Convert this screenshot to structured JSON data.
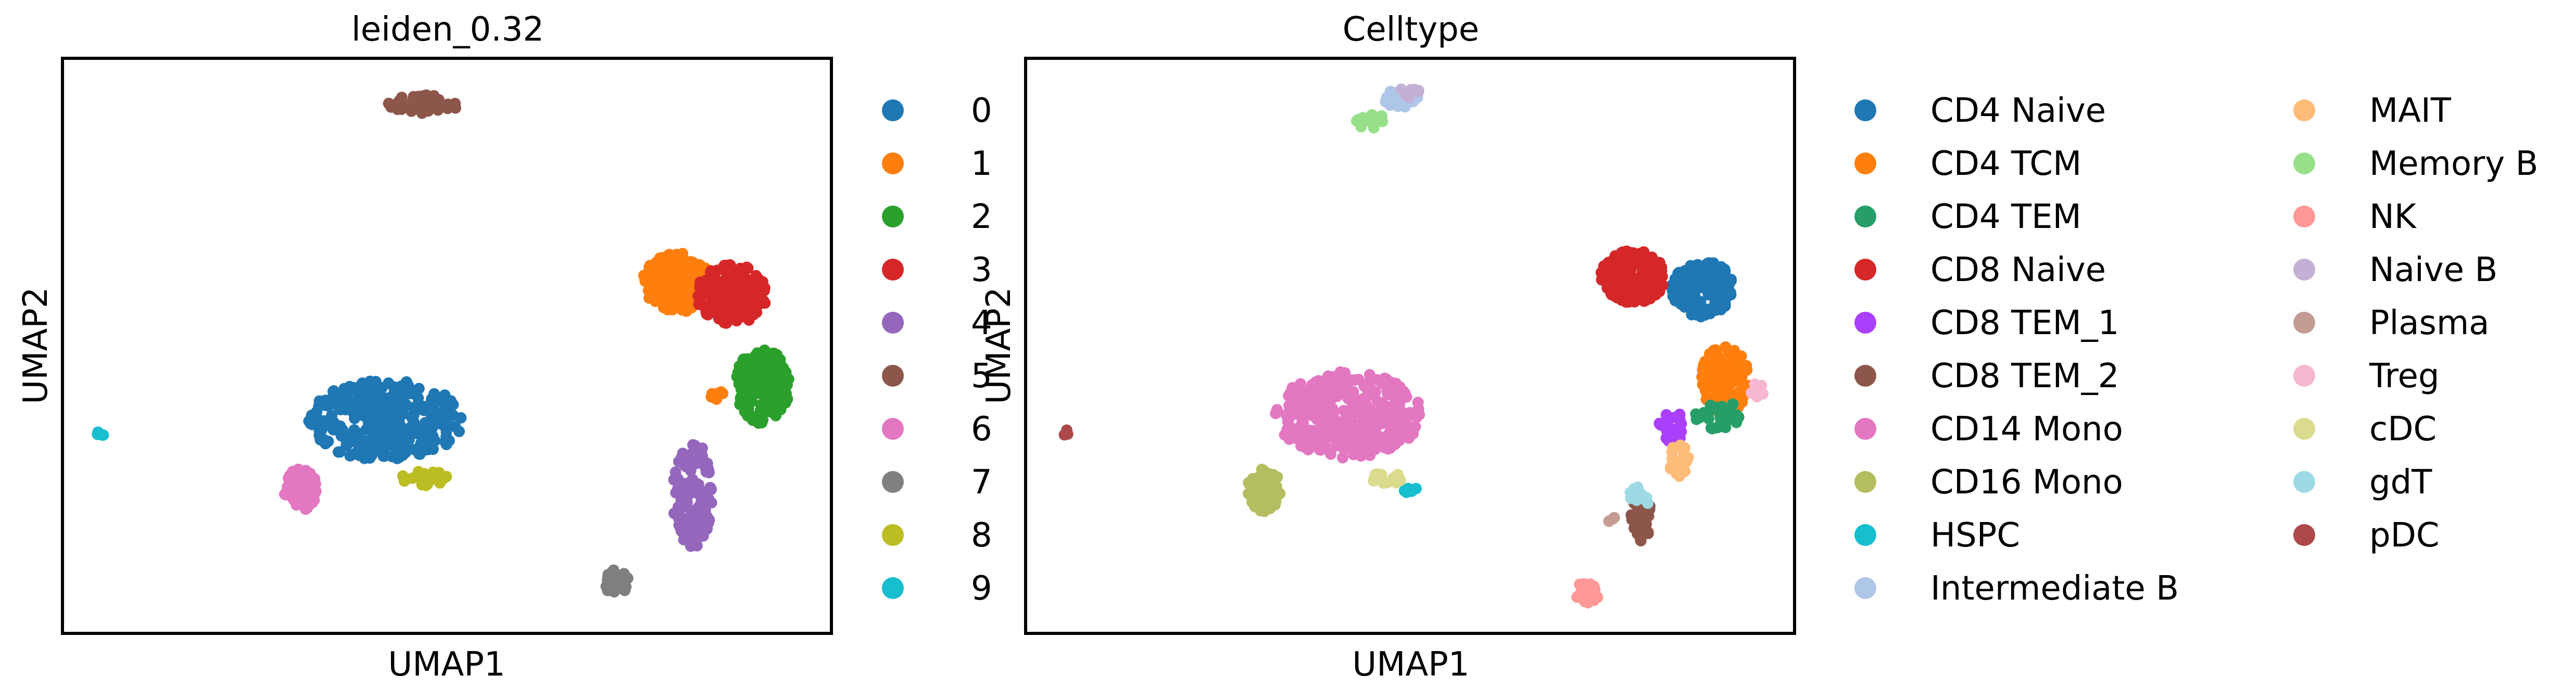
{
  "chart_data": [
    {
      "type": "scatter",
      "title": "leiden_0.32",
      "xlabel": "UMAP1",
      "ylabel": "UMAP2",
      "xlim": [
        0,
        100
      ],
      "ylim": [
        0,
        100
      ],
      "grid": false,
      "legend_position": "right",
      "series": [
        {
          "name": "0",
          "color": "#1f77b4",
          "clusters": [
            {
              "cx": 42,
              "cy": 37,
              "rx": 10,
              "ry": 7,
              "n": 320
            }
          ]
        },
        {
          "name": "1",
          "color": "#ff7f0e",
          "clusters": [
            {
              "cx": 80,
              "cy": 61,
              "rx": 4.6,
              "ry": 5.2,
              "n": 200
            },
            {
              "cx": 85,
              "cy": 42,
              "rx": 0.9,
              "ry": 1.4,
              "n": 7
            }
          ]
        },
        {
          "name": "2",
          "color": "#2ca02c",
          "clusters": [
            {
              "cx": 91,
              "cy": 43,
              "rx": 3.6,
              "ry": 6.5,
              "n": 200
            }
          ]
        },
        {
          "name": "3",
          "color": "#d62728",
          "clusters": [
            {
              "cx": 87,
              "cy": 59,
              "rx": 4.6,
              "ry": 5.2,
              "n": 180
            }
          ]
        },
        {
          "name": "4",
          "color": "#9467bd",
          "clusters": [
            {
              "cx": 82,
              "cy": 24,
              "rx": 2.6,
              "ry": 9.5,
              "n": 130
            }
          ]
        },
        {
          "name": "5",
          "color": "#8c564b",
          "clusters": [
            {
              "cx": 47,
              "cy": 92,
              "rx": 4.6,
              "ry": 1.6,
              "n": 40
            }
          ]
        },
        {
          "name": "6",
          "color": "#e377c2",
          "clusters": [
            {
              "cx": 31,
              "cy": 25,
              "rx": 2.2,
              "ry": 3.6,
              "n": 55
            }
          ]
        },
        {
          "name": "7",
          "color": "#7f7f7f",
          "clusters": [
            {
              "cx": 72,
              "cy": 9,
              "rx": 1.6,
              "ry": 2.2,
              "n": 35
            }
          ]
        },
        {
          "name": "8",
          "color": "#bcbd22",
          "clusters": [
            {
              "cx": 47,
              "cy": 27,
              "rx": 3.0,
              "ry": 1.3,
              "n": 22
            }
          ]
        },
        {
          "name": "9",
          "color": "#17becf",
          "clusters": [
            {
              "cx": 5,
              "cy": 35,
              "rx": 0.6,
              "ry": 0.6,
              "n": 5
            }
          ]
        }
      ]
    },
    {
      "type": "scatter",
      "title": "Celltype",
      "xlabel": "UMAP1",
      "ylabel": "UMAP2",
      "xlim": [
        0,
        100
      ],
      "ylim": [
        0,
        100
      ],
      "grid": false,
      "legend_position": "right",
      "series": [
        {
          "name": "CD4 Naive",
          "color": "#1f77b4",
          "clusters": [
            {
              "cx": 88,
              "cy": 60,
              "rx": 4.0,
              "ry": 5.0,
              "n": 170
            }
          ]
        },
        {
          "name": "CD4 TCM",
          "color": "#ff7f0e",
          "clusters": [
            {
              "cx": 91,
              "cy": 44,
              "rx": 3.2,
              "ry": 6.0,
              "n": 150
            }
          ]
        },
        {
          "name": "CD4 TEM",
          "color": "#279e68",
          "clusters": [
            {
              "cx": 90,
              "cy": 38,
              "rx": 3.0,
              "ry": 2.5,
              "n": 35
            }
          ]
        },
        {
          "name": "CD8 Naive",
          "color": "#d62728",
          "clusters": [
            {
              "cx": 79,
              "cy": 62,
              "rx": 4.2,
              "ry": 4.6,
              "n": 190
            }
          ]
        },
        {
          "name": "CD8 TEM_1",
          "color": "#aa40fc",
          "clusters": [
            {
              "cx": 84,
              "cy": 36,
              "rx": 1.6,
              "ry": 3.0,
              "n": 25
            }
          ]
        },
        {
          "name": "CD8 TEM_2",
          "color": "#8c564b",
          "clusters": [
            {
              "cx": 80,
              "cy": 20,
              "rx": 1.4,
              "ry": 4.0,
              "n": 40
            }
          ]
        },
        {
          "name": "CD14 Mono",
          "color": "#e377c2",
          "clusters": [
            {
              "cx": 42,
              "cy": 38,
              "rx": 9.5,
              "ry": 7.5,
              "n": 360
            }
          ]
        },
        {
          "name": "CD16 Mono",
          "color": "#b5bd61",
          "clusters": [
            {
              "cx": 31,
              "cy": 25,
              "rx": 2.2,
              "ry": 3.8,
              "n": 60
            }
          ]
        },
        {
          "name": "HSPC",
          "color": "#17becf",
          "clusters": [
            {
              "cx": 50,
              "cy": 25,
              "rx": 1.0,
              "ry": 0.6,
              "n": 6
            }
          ]
        },
        {
          "name": "Intermediate B",
          "color": "#aec7e8",
          "clusters": [
            {
              "cx": 49,
              "cy": 93,
              "rx": 2.6,
              "ry": 1.6,
              "n": 25
            }
          ]
        },
        {
          "name": "MAIT",
          "color": "#ffbb78",
          "clusters": [
            {
              "cx": 85,
              "cy": 30,
              "rx": 1.4,
              "ry": 3.0,
              "n": 18
            }
          ]
        },
        {
          "name": "Memory B",
          "color": "#98df8a",
          "clusters": [
            {
              "cx": 45,
              "cy": 89,
              "rx": 2.0,
              "ry": 1.3,
              "n": 15
            }
          ]
        },
        {
          "name": "NK",
          "color": "#ff9896",
          "clusters": [
            {
              "cx": 73,
              "cy": 7,
              "rx": 1.6,
              "ry": 2.0,
              "n": 30
            }
          ]
        },
        {
          "name": "Naive B",
          "color": "#c5b0d5",
          "clusters": [
            {
              "cx": 50,
              "cy": 94,
              "rx": 1.6,
              "ry": 1.0,
              "n": 12
            }
          ]
        },
        {
          "name": "Plasma",
          "color": "#c49c94",
          "clusters": [
            {
              "cx": 76,
              "cy": 20,
              "rx": 0.6,
              "ry": 0.6,
              "n": 3
            }
          ]
        },
        {
          "name": "Treg",
          "color": "#f7b6d2",
          "clusters": [
            {
              "cx": 95,
              "cy": 42,
              "rx": 1.0,
              "ry": 1.6,
              "n": 8
            }
          ]
        },
        {
          "name": "cDC",
          "color": "#dbdb8d",
          "clusters": [
            {
              "cx": 47,
              "cy": 27,
              "rx": 2.0,
              "ry": 1.2,
              "n": 15
            }
          ]
        },
        {
          "name": "gdT",
          "color": "#9edae5",
          "clusters": [
            {
              "cx": 80,
              "cy": 24,
              "rx": 1.4,
              "ry": 1.8,
              "n": 12
            }
          ]
        },
        {
          "name": "pDC",
          "color": "#ad494a",
          "clusters": [
            {
              "cx": 5,
              "cy": 35,
              "rx": 0.6,
              "ry": 0.6,
              "n": 5
            }
          ]
        }
      ]
    }
  ]
}
